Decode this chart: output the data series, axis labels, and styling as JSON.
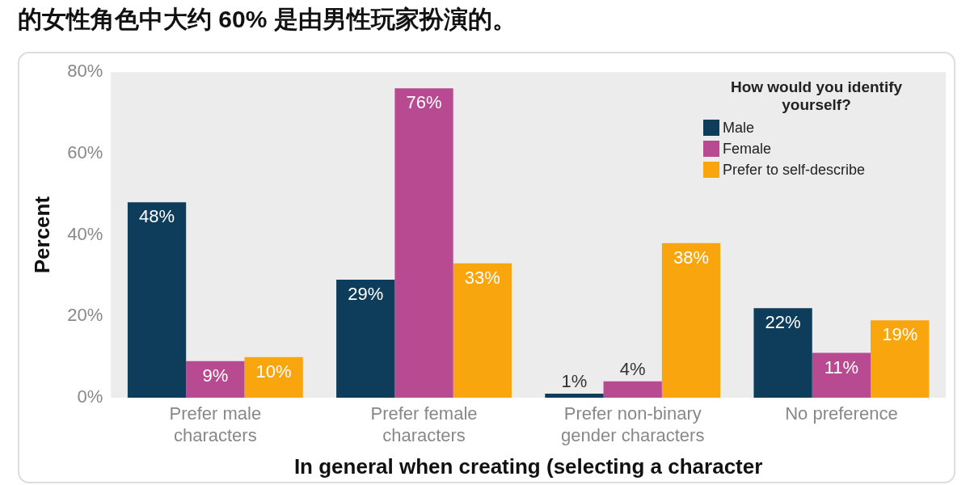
{
  "chart_data": {
    "type": "bar",
    "title": "的女性角色中大约 60% 是由男性玩家扮演的。",
    "xlabel": "In general when creating (selecting a character",
    "ylabel": "Percent",
    "legend_title": "How would you identify yourself?",
    "categories": [
      "Prefer male characters",
      "Prefer female characters",
      "Prefer non-binary gender characters",
      "No preference"
    ],
    "series": [
      {
        "name": "Male",
        "color": "#0e3d5c",
        "values": [
          48,
          29,
          1,
          22
        ]
      },
      {
        "name": "Female",
        "color": "#b74a90",
        "values": [
          9,
          76,
          4,
          11
        ]
      },
      {
        "name": "Prefer to self-describe",
        "color": "#f9a50e",
        "values": [
          10,
          33,
          38,
          19
        ]
      }
    ],
    "ylim": [
      0,
      80
    ],
    "yticks": [
      {
        "value": 0,
        "label": "0%"
      },
      {
        "value": 20,
        "label": "20%"
      },
      {
        "value": 40,
        "label": "40%"
      },
      {
        "value": 60,
        "label": "60%"
      },
      {
        "value": 80,
        "label": "80%"
      }
    ],
    "value_labels": [
      [
        "48%",
        "29%",
        "1%",
        "22%"
      ],
      [
        "9%",
        "76%",
        "4%",
        "11%"
      ],
      [
        "10%",
        "33%",
        "38%",
        "19%"
      ]
    ],
    "grid": false,
    "legend": "top right"
  }
}
